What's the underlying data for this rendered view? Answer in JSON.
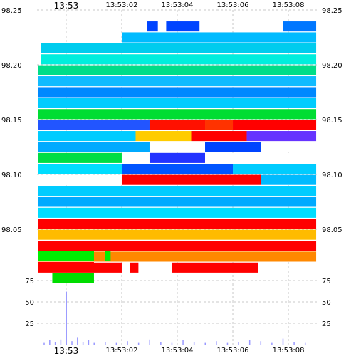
{
  "chart_data": [
    {
      "type": "heatmap",
      "title": "",
      "xlabel": "",
      "ylabel": "",
      "x_ticks": [
        {
          "label": "13:53",
          "t": 0,
          "big": true
        },
        {
          "label": "13:53:02",
          "t": 2
        },
        {
          "label": "13:53:04",
          "t": 4
        },
        {
          "label": "13:53:06",
          "t": 6
        },
        {
          "label": "13:53:08",
          "t": 8
        }
      ],
      "x_range_seconds": [
        -1.05,
        9.05
      ],
      "y_ticks": [
        "98.25",
        "98.20",
        "98.15",
        "98.10",
        "98.05"
      ],
      "y_tick_values": [
        98.25,
        98.2,
        98.15,
        98.1,
        98.05
      ],
      "ylim": [
        98.011,
        98.25
      ],
      "grid": true,
      "cell_rows": [
        {
          "y": 98.235,
          "cells": [
            [
              2.9,
              3.3,
              "#0044ff"
            ],
            [
              3.6,
              4.8,
              "#0044ff"
            ],
            [
              7.8,
              9.0,
              "#0077ff"
            ]
          ]
        },
        {
          "y": 98.225,
          "cells": [
            [
              2.0,
              9.0,
              "#00bbff"
            ]
          ]
        },
        {
          "y": 98.215,
          "cells": [
            [
              -0.9,
              9.0,
              "#00ccee"
            ]
          ]
        },
        {
          "y": 98.205,
          "cells": [
            [
              -0.9,
              9.0,
              "#00eedd"
            ]
          ]
        },
        {
          "y": 98.195,
          "cells": [
            [
              -1.0,
              9.0,
              "#00dd88"
            ]
          ]
        },
        {
          "y": 98.185,
          "cells": [
            [
              -1.0,
              9.0,
              "#11bbff"
            ]
          ]
        },
        {
          "y": 98.175,
          "cells": [
            [
              -1.0,
              9.0,
              "#0088ff"
            ]
          ]
        },
        {
          "y": 98.165,
          "cells": [
            [
              -1.0,
              9.0,
              "#00ccff"
            ]
          ]
        },
        {
          "y": 98.155,
          "cells": [
            [
              -1.0,
              9.0,
              "#00dd33"
            ]
          ]
        },
        {
          "y": 98.145,
          "cells": [
            [
              -1.0,
              3.0,
              "#2255ff"
            ],
            [
              3.0,
              5.0,
              "#ff1100"
            ],
            [
              5.0,
              6.0,
              "#ff3300"
            ],
            [
              6.0,
              7.2,
              "#ff0000"
            ],
            [
              7.2,
              9.0,
              "#ff0000"
            ]
          ]
        },
        {
          "y": 98.135,
          "cells": [
            [
              -1.0,
              2.5,
              "#00ccff"
            ],
            [
              2.5,
              4.5,
              "#ffcc00"
            ],
            [
              4.5,
              6.5,
              "#ff0000"
            ],
            [
              6.5,
              9.0,
              "#6633ff"
            ]
          ]
        },
        {
          "y": 98.125,
          "cells": [
            [
              -1.0,
              3.0,
              "#00aaff"
            ],
            [
              3.0,
              5.0,
              "#ffffff"
            ],
            [
              5.0,
              7.0,
              "#0044ff"
            ],
            [
              7.0,
              9.0,
              "#ffffff"
            ]
          ]
        },
        {
          "y": 98.115,
          "cells": [
            [
              -1.0,
              2.0,
              "#00dd44"
            ],
            [
              2.0,
              3.0,
              "#ffffff"
            ],
            [
              3.0,
              5.0,
              "#2233ff"
            ],
            [
              5.0,
              9.0,
              "#ffffff"
            ]
          ]
        },
        {
          "y": 98.105,
          "cells": [
            [
              -1.0,
              2.0,
              "#00ddff"
            ],
            [
              2.0,
              6.0,
              "#0055ff"
            ],
            [
              6.0,
              9.0,
              "#00ccff"
            ]
          ]
        },
        {
          "y": 98.095,
          "cells": [
            [
              -1.0,
              2.0,
              "#ffffff"
            ],
            [
              2.0,
              7.0,
              "#ff0000"
            ],
            [
              7.0,
              9.0,
              "#00bbff"
            ]
          ]
        },
        {
          "y": 98.085,
          "cells": [
            [
              -1.0,
              9.0,
              "#00ccff"
            ]
          ]
        },
        {
          "y": 98.075,
          "cells": [
            [
              -1.0,
              9.0,
              "#00aaff"
            ]
          ]
        },
        {
          "y": 98.065,
          "cells": [
            [
              -1.0,
              9.0,
              "#00ddff"
            ]
          ]
        },
        {
          "y": 98.055,
          "cells": [
            [
              -1.0,
              9.0,
              "#ff0000"
            ]
          ]
        },
        {
          "y": 98.045,
          "cells": [
            [
              -1.0,
              9.0,
              "#ffbb00"
            ]
          ]
        },
        {
          "y": 98.035,
          "cells": [
            [
              -1.0,
              9.0,
              "#ff0000"
            ]
          ]
        },
        {
          "y": 98.025,
          "cells": [
            [
              -1.0,
              9.0,
              "#ff8800"
            ]
          ]
        },
        {
          "y": 98.015,
          "cells": [
            [
              -1.0,
              2.0,
              "#ff0000"
            ],
            [
              2.3,
              2.6,
              "#ff0000"
            ],
            [
              3.8,
              6.9,
              "#ff0000"
            ]
          ]
        }
      ],
      "top_curve_series": [
        {
          "name": "",
          "cells": [
            [
              -1.0,
              1.0,
              "#00ee00"
            ],
            [
              1.4,
              1.6,
              "#00ee00"
            ]
          ]
        },
        {
          "name": "",
          "cells": [
            [
              -1.0,
              1.0,
              "#ff0000"
            ]
          ]
        },
        {
          "name": "",
          "cells": [
            [
              -0.5,
              1.0,
              "#00dd00"
            ]
          ]
        }
      ]
    },
    {
      "type": "bar",
      "title": "",
      "xlabel": "",
      "ylabel": "",
      "y_ticks": [
        "75",
        "50",
        "25"
      ],
      "y_tick_values": [
        75,
        50,
        25
      ],
      "ylim": [
        0,
        85
      ],
      "grid": true,
      "x_range_seconds": [
        -1.05,
        9.05
      ],
      "x": [
        -0.8,
        -0.6,
        -0.4,
        -0.2,
        0.0,
        0.2,
        0.4,
        0.6,
        0.8,
        1.0,
        1.4,
        1.8,
        2.2,
        2.6,
        3.0,
        3.4,
        3.8,
        4.2,
        4.6,
        5.0,
        5.4,
        5.8,
        6.2,
        6.6,
        7.0,
        7.4,
        7.8,
        8.2,
        8.6
      ],
      "values": [
        2,
        5,
        3,
        6,
        62,
        4,
        8,
        3,
        5,
        2,
        3,
        2,
        4,
        2,
        6,
        3,
        2,
        5,
        3,
        2,
        4,
        2,
        3,
        5,
        4,
        2,
        7,
        3,
        2
      ]
    }
  ]
}
